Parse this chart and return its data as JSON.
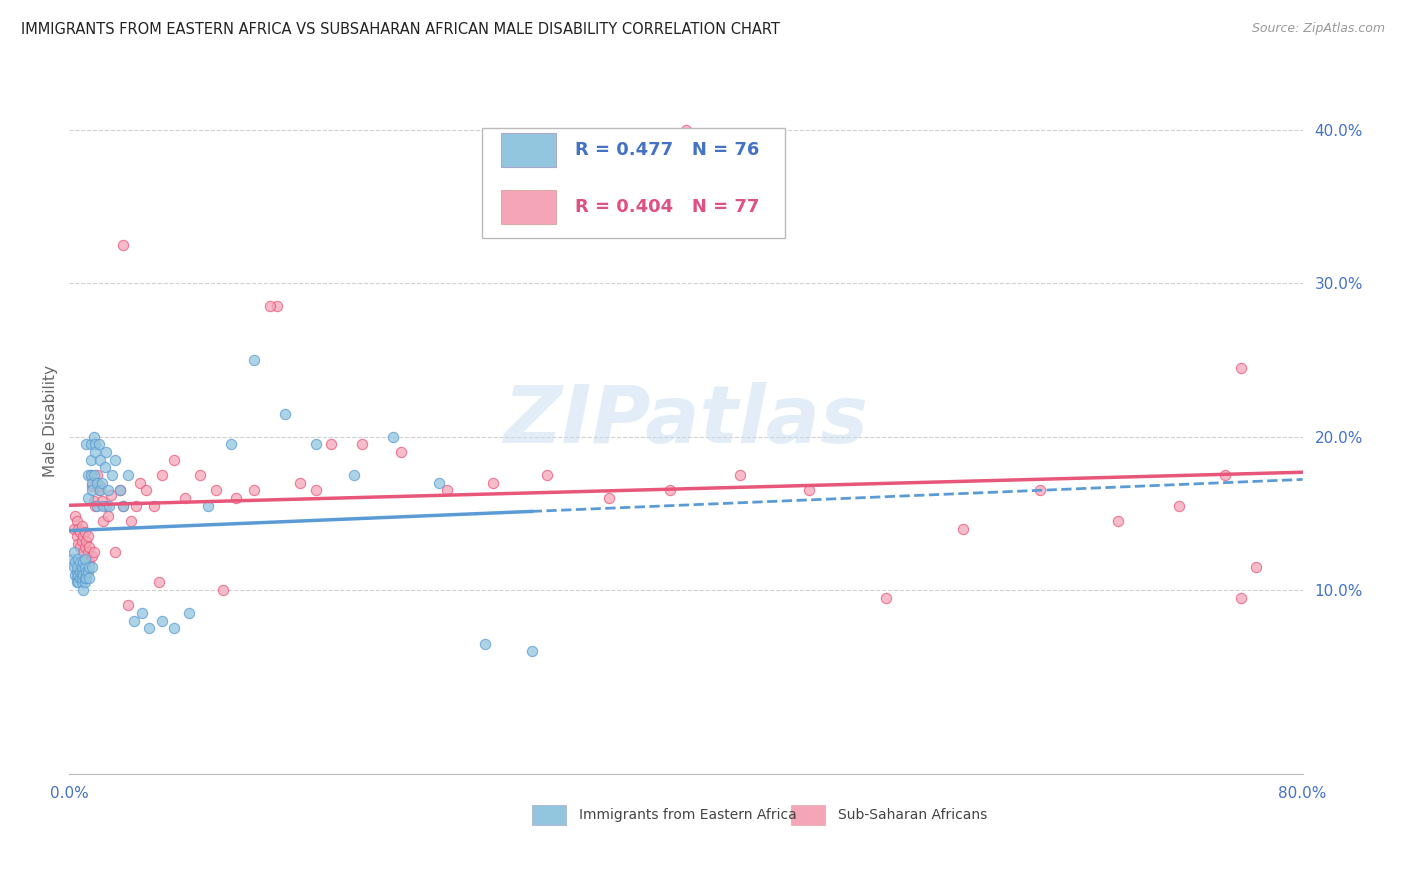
{
  "title": "IMMIGRANTS FROM EASTERN AFRICA VS SUBSAHARAN AFRICAN MALE DISABILITY CORRELATION CHART",
  "source": "Source: ZipAtlas.com",
  "ylabel": "Male Disability",
  "right_ytick_vals": [
    0.1,
    0.2,
    0.3,
    0.4
  ],
  "xlim": [
    0.0,
    0.8
  ],
  "ylim": [
    -0.02,
    0.44
  ],
  "legend_blue_r": "R = 0.477",
  "legend_blue_n": "N = 76",
  "legend_pink_r": "R = 0.404",
  "legend_pink_n": "N = 77",
  "legend_label_blue": "Immigrants from Eastern Africa",
  "legend_label_pink": "Sub-Saharan Africans",
  "color_blue": "#92c5de",
  "color_pink": "#f4a6b8",
  "color_blue_line": "#5b9bd5",
  "color_pink_line": "#e8567a",
  "watermark_text": "ZIPatlas",
  "blue_scatter_x": [
    0.002,
    0.003,
    0.003,
    0.004,
    0.004,
    0.005,
    0.005,
    0.005,
    0.005,
    0.006,
    0.006,
    0.006,
    0.007,
    0.007,
    0.007,
    0.008,
    0.008,
    0.008,
    0.008,
    0.009,
    0.009,
    0.009,
    0.01,
    0.01,
    0.01,
    0.01,
    0.011,
    0.011,
    0.011,
    0.012,
    0.012,
    0.012,
    0.013,
    0.013,
    0.014,
    0.014,
    0.014,
    0.015,
    0.015,
    0.015,
    0.016,
    0.016,
    0.017,
    0.017,
    0.018,
    0.018,
    0.019,
    0.02,
    0.02,
    0.021,
    0.022,
    0.023,
    0.024,
    0.025,
    0.026,
    0.028,
    0.03,
    0.033,
    0.035,
    0.038,
    0.042,
    0.047,
    0.052,
    0.06,
    0.068,
    0.078,
    0.09,
    0.105,
    0.12,
    0.14,
    0.16,
    0.185,
    0.21,
    0.24,
    0.27,
    0.3
  ],
  "blue_scatter_y": [
    0.12,
    0.125,
    0.115,
    0.118,
    0.11,
    0.112,
    0.108,
    0.115,
    0.105,
    0.11,
    0.12,
    0.105,
    0.108,
    0.118,
    0.112,
    0.105,
    0.112,
    0.108,
    0.115,
    0.1,
    0.11,
    0.118,
    0.105,
    0.115,
    0.108,
    0.12,
    0.195,
    0.112,
    0.108,
    0.175,
    0.16,
    0.112,
    0.115,
    0.108,
    0.195,
    0.185,
    0.175,
    0.17,
    0.165,
    0.115,
    0.2,
    0.175,
    0.195,
    0.19,
    0.155,
    0.17,
    0.195,
    0.185,
    0.165,
    0.17,
    0.155,
    0.18,
    0.19,
    0.165,
    0.155,
    0.175,
    0.185,
    0.165,
    0.155,
    0.175,
    0.08,
    0.085,
    0.075,
    0.08,
    0.075,
    0.085,
    0.155,
    0.195,
    0.25,
    0.215,
    0.195,
    0.175,
    0.2,
    0.17,
    0.065,
    0.06
  ],
  "pink_scatter_x": [
    0.003,
    0.004,
    0.005,
    0.005,
    0.006,
    0.006,
    0.007,
    0.007,
    0.008,
    0.008,
    0.009,
    0.009,
    0.01,
    0.01,
    0.011,
    0.011,
    0.012,
    0.012,
    0.013,
    0.013,
    0.014,
    0.015,
    0.015,
    0.016,
    0.016,
    0.017,
    0.018,
    0.019,
    0.02,
    0.021,
    0.022,
    0.024,
    0.025,
    0.027,
    0.03,
    0.033,
    0.035,
    0.038,
    0.04,
    0.043,
    0.046,
    0.05,
    0.055,
    0.06,
    0.068,
    0.075,
    0.085,
    0.095,
    0.108,
    0.12,
    0.135,
    0.15,
    0.17,
    0.19,
    0.215,
    0.245,
    0.275,
    0.31,
    0.35,
    0.39,
    0.435,
    0.48,
    0.53,
    0.58,
    0.63,
    0.68,
    0.72,
    0.75,
    0.76,
    0.77,
    0.035,
    0.058,
    0.1,
    0.13,
    0.16,
    0.4,
    0.76
  ],
  "pink_scatter_y": [
    0.14,
    0.148,
    0.135,
    0.145,
    0.13,
    0.14,
    0.128,
    0.138,
    0.132,
    0.142,
    0.125,
    0.135,
    0.128,
    0.138,
    0.12,
    0.132,
    0.125,
    0.135,
    0.118,
    0.128,
    0.175,
    0.122,
    0.168,
    0.125,
    0.158,
    0.155,
    0.175,
    0.165,
    0.168,
    0.158,
    0.145,
    0.155,
    0.148,
    0.162,
    0.125,
    0.165,
    0.155,
    0.09,
    0.145,
    0.155,
    0.17,
    0.165,
    0.155,
    0.175,
    0.185,
    0.16,
    0.175,
    0.165,
    0.16,
    0.165,
    0.285,
    0.17,
    0.195,
    0.195,
    0.19,
    0.165,
    0.17,
    0.175,
    0.16,
    0.165,
    0.175,
    0.165,
    0.095,
    0.14,
    0.165,
    0.145,
    0.155,
    0.175,
    0.095,
    0.115,
    0.325,
    0.105,
    0.1,
    0.285,
    0.165,
    0.4,
    0.245
  ]
}
